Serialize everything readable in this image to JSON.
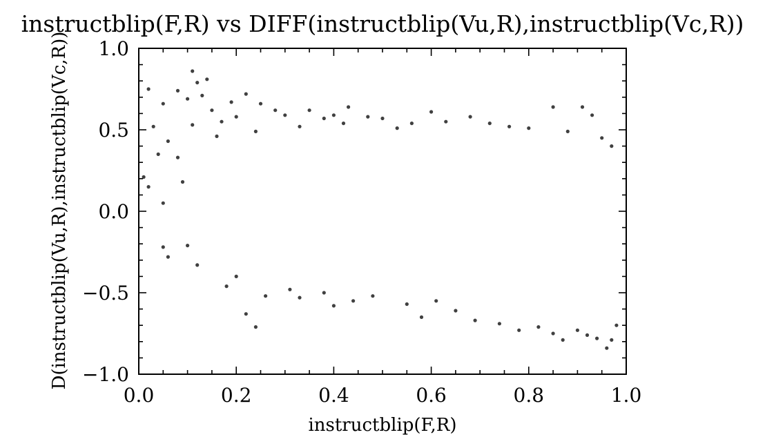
{
  "chart_data": {
    "type": "scatter",
    "title": "instructblip(F,R) vs DIFF(instructblip(Vu,R),instructblip(Vc,R))",
    "xlabel": "instructblip(F,R)",
    "ylabel": "D(instructblip(Vu,R),instructblip(Vc,R))",
    "xlim": [
      0.0,
      1.0
    ],
    "ylim": [
      -1.0,
      1.0
    ],
    "x_ticks": [
      0.0,
      0.2,
      0.4,
      0.6,
      0.8,
      1.0
    ],
    "x_tick_labels": [
      "0.0",
      "0.2",
      "0.4",
      "0.6",
      "0.8",
      "1.0"
    ],
    "y_ticks": [
      -1.0,
      -0.5,
      0.0,
      0.5,
      1.0
    ],
    "y_tick_labels": [
      "−1.0",
      "−0.5",
      "0.0",
      "0.5",
      "1.0"
    ],
    "grid": false,
    "marker_color": "#000000",
    "series": [
      {
        "points": [
          [
            0.01,
            0.21
          ],
          [
            0.02,
            0.75
          ],
          [
            0.02,
            0.15
          ],
          [
            0.03,
            0.52
          ],
          [
            0.04,
            0.35
          ],
          [
            0.05,
            0.66
          ],
          [
            0.05,
            0.05
          ],
          [
            0.05,
            -0.22
          ],
          [
            0.06,
            0.43
          ],
          [
            0.06,
            -0.28
          ],
          [
            0.08,
            0.74
          ],
          [
            0.08,
            0.33
          ],
          [
            0.09,
            0.18
          ],
          [
            0.1,
            0.69
          ],
          [
            0.1,
            -0.21
          ],
          [
            0.11,
            0.86
          ],
          [
            0.11,
            0.53
          ],
          [
            0.12,
            0.79
          ],
          [
            0.12,
            -0.33
          ],
          [
            0.13,
            0.71
          ],
          [
            0.14,
            0.81
          ],
          [
            0.15,
            0.62
          ],
          [
            0.16,
            0.46
          ],
          [
            0.17,
            0.55
          ],
          [
            0.18,
            -0.46
          ],
          [
            0.19,
            0.67
          ],
          [
            0.2,
            0.58
          ],
          [
            0.2,
            -0.4
          ],
          [
            0.22,
            0.72
          ],
          [
            0.22,
            -0.63
          ],
          [
            0.24,
            0.49
          ],
          [
            0.24,
            -0.71
          ],
          [
            0.25,
            0.66
          ],
          [
            0.26,
            -0.52
          ],
          [
            0.28,
            0.62
          ],
          [
            0.3,
            0.59
          ],
          [
            0.31,
            -0.48
          ],
          [
            0.33,
            0.52
          ],
          [
            0.33,
            -0.53
          ],
          [
            0.35,
            0.62
          ],
          [
            0.38,
            0.57
          ],
          [
            0.38,
            -0.5
          ],
          [
            0.4,
            0.59
          ],
          [
            0.4,
            -0.58
          ],
          [
            0.42,
            0.54
          ],
          [
            0.43,
            0.64
          ],
          [
            0.44,
            -0.55
          ],
          [
            0.47,
            0.58
          ],
          [
            0.48,
            -0.52
          ],
          [
            0.5,
            0.57
          ],
          [
            0.53,
            0.51
          ],
          [
            0.55,
            -0.57
          ],
          [
            0.56,
            0.54
          ],
          [
            0.58,
            -0.65
          ],
          [
            0.6,
            0.61
          ],
          [
            0.61,
            -0.55
          ],
          [
            0.63,
            0.55
          ],
          [
            0.65,
            -0.61
          ],
          [
            0.68,
            0.58
          ],
          [
            0.69,
            -0.67
          ],
          [
            0.72,
            0.54
          ],
          [
            0.74,
            -0.69
          ],
          [
            0.76,
            0.52
          ],
          [
            0.78,
            -0.73
          ],
          [
            0.8,
            0.51
          ],
          [
            0.82,
            -0.71
          ],
          [
            0.85,
            0.64
          ],
          [
            0.85,
            -0.75
          ],
          [
            0.87,
            -0.79
          ],
          [
            0.88,
            0.49
          ],
          [
            0.9,
            -0.73
          ],
          [
            0.91,
            0.64
          ],
          [
            0.92,
            -0.76
          ],
          [
            0.93,
            0.59
          ],
          [
            0.94,
            -0.78
          ],
          [
            0.95,
            0.45
          ],
          [
            0.96,
            -0.84
          ],
          [
            0.97,
            -0.79
          ],
          [
            0.97,
            0.4
          ],
          [
            0.98,
            -0.7
          ]
        ]
      }
    ]
  }
}
